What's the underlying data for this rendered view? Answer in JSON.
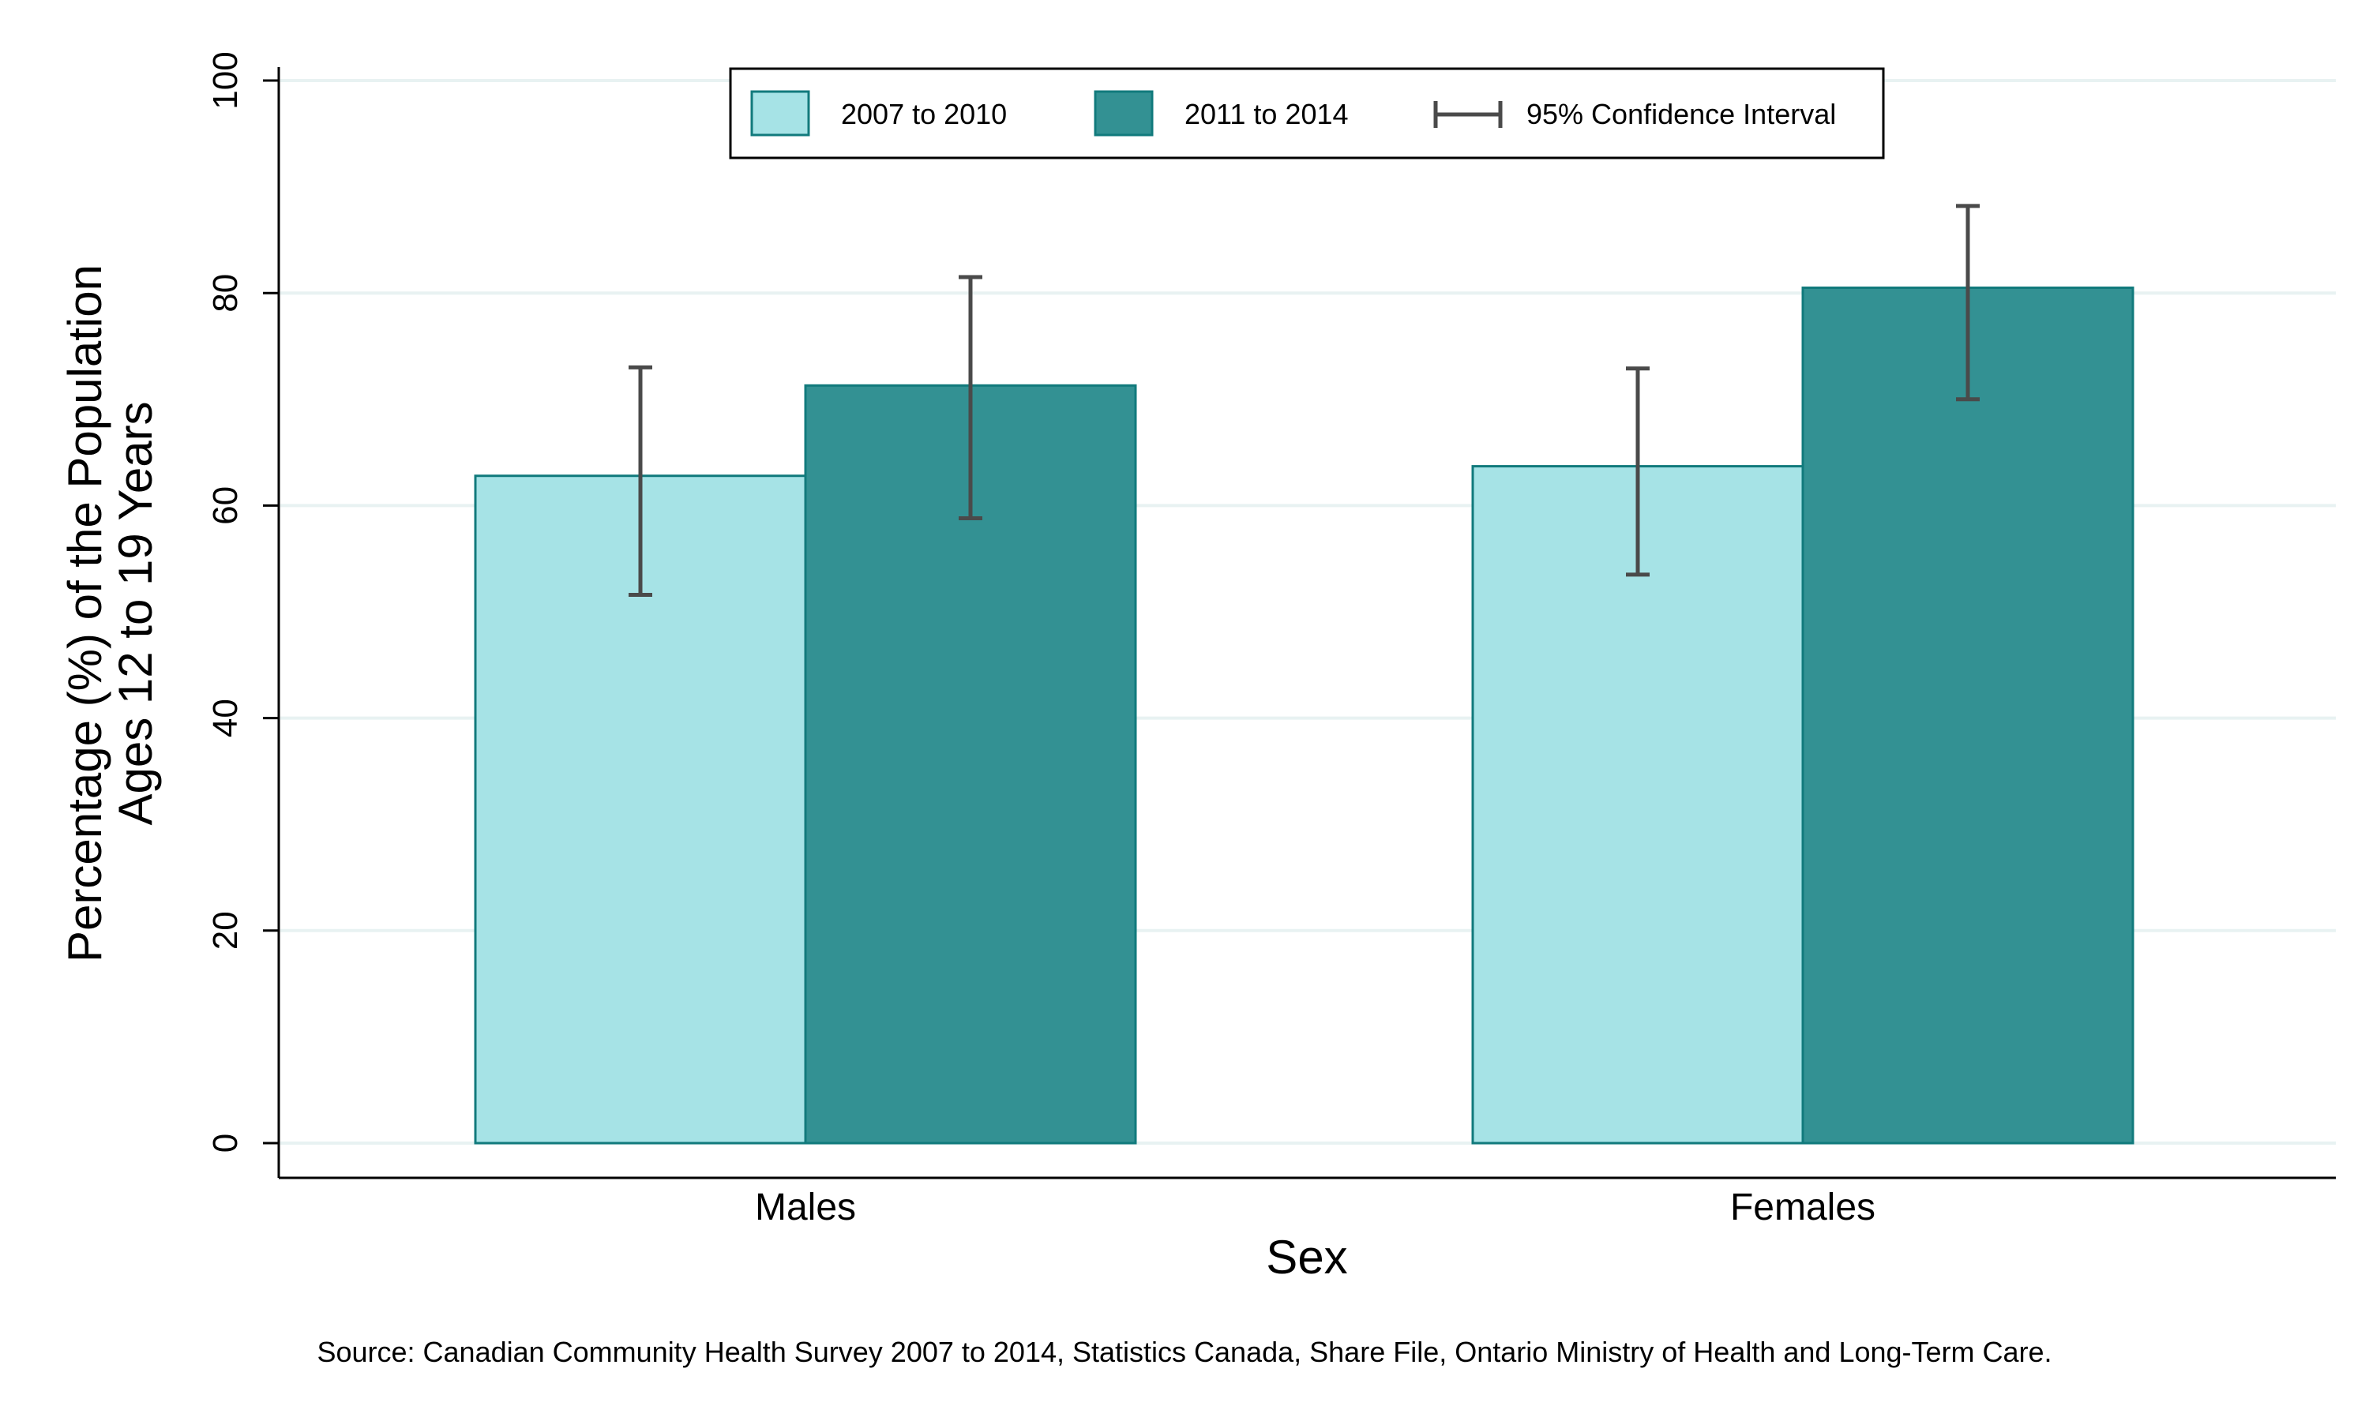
{
  "chart_data": {
    "type": "bar",
    "categories": [
      "Males",
      "Females"
    ],
    "series": [
      {
        "name": "2007 to 2010",
        "values": [
          62.8,
          63.7
        ],
        "ci_low": [
          51.6,
          53.5
        ],
        "ci_high": [
          73.0,
          72.9
        ],
        "color": "#a6e3e6"
      },
      {
        "name": "2011 to 2014",
        "values": [
          71.3,
          80.5
        ],
        "ci_low": [
          58.8,
          70.0
        ],
        "ci_high": [
          81.5,
          88.2
        ],
        "color": "#339193"
      }
    ],
    "ci_legend_label": "95% Confidence Interval",
    "xlabel": "Sex",
    "ylabel_line1": "Percentage (%) of the Population",
    "ylabel_line2": "Ages 12 to 19 Years",
    "ylim": [
      0,
      100
    ],
    "yticks": [
      0,
      20,
      40,
      60,
      80,
      100
    ],
    "grid": true,
    "legend_position": "top",
    "source": "Source: Canadian Community Health Survey 2007 to 2014, Statistics Canada, Share File, Ontario Ministry of Health and Long-Term Care.",
    "colors": {
      "bar_stroke": "#117a7c",
      "error_bar": "#4a4a4a",
      "grid": "#e8f2f2",
      "axis": "#000000"
    }
  }
}
